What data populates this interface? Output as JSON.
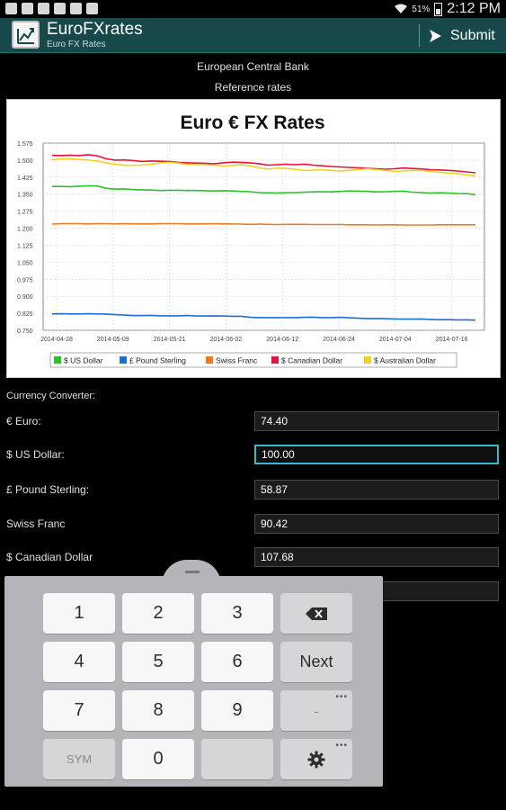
{
  "status_bar": {
    "battery": "51%",
    "time": "2:12 PM"
  },
  "action_bar": {
    "title": "EuroFXrates",
    "subtitle": "Euro FX Rates",
    "submit_label": "Submit"
  },
  "header": {
    "line1": "European Central Bank",
    "line2": "Reference rates"
  },
  "chart_data": {
    "type": "line",
    "title": "Euro € FX Rates",
    "x_ticks": [
      "2014-04-28",
      "2014-05-09",
      "2014-05-21",
      "2014-06-02",
      "2014-06-12",
      "2014-06-24",
      "2014-07-04",
      "2014-07-16"
    ],
    "y_ticks": [
      "1.575",
      "1.500",
      "1.425",
      "1.350",
      "1.275",
      "1.200",
      "1.125",
      "1.050",
      "0.975",
      "0.900",
      "0.825",
      "0.750"
    ],
    "ylim": [
      0.75,
      1.575
    ],
    "grid": true,
    "legend_placement": "bottom",
    "series": [
      {
        "name": "$ US Dollar",
        "color": "#2cc02c",
        "values": [
          1.384,
          1.384,
          1.383,
          1.385,
          1.387,
          1.386,
          1.376,
          1.372,
          1.373,
          1.37,
          1.369,
          1.368,
          1.366,
          1.367,
          1.367,
          1.366,
          1.366,
          1.365,
          1.364,
          1.365,
          1.364,
          1.362,
          1.361,
          1.357,
          1.356,
          1.355,
          1.357,
          1.357,
          1.359,
          1.36,
          1.361,
          1.36,
          1.362,
          1.364,
          1.363,
          1.362,
          1.36,
          1.361,
          1.362,
          1.363,
          1.359,
          1.357,
          1.355,
          1.356,
          1.355,
          1.353,
          1.352,
          1.348
        ]
      },
      {
        "name": "£ Pound Sterling",
        "color": "#1f6fd0",
        "values": [
          0.822,
          0.823,
          0.822,
          0.822,
          0.823,
          0.822,
          0.821,
          0.819,
          0.817,
          0.815,
          0.815,
          0.816,
          0.814,
          0.814,
          0.814,
          0.815,
          0.813,
          0.813,
          0.814,
          0.813,
          0.812,
          0.812,
          0.807,
          0.806,
          0.806,
          0.806,
          0.806,
          0.806,
          0.807,
          0.808,
          0.806,
          0.806,
          0.807,
          0.805,
          0.803,
          0.802,
          0.802,
          0.801,
          0.8,
          0.799,
          0.799,
          0.8,
          0.798,
          0.797,
          0.797,
          0.796,
          0.796,
          0.795
        ]
      },
      {
        "name": "Swiss Franc",
        "color": "#f07a1e",
        "values": [
          1.218,
          1.22,
          1.22,
          1.22,
          1.219,
          1.22,
          1.22,
          1.219,
          1.22,
          1.219,
          1.219,
          1.219,
          1.22,
          1.22,
          1.22,
          1.219,
          1.219,
          1.219,
          1.22,
          1.219,
          1.219,
          1.218,
          1.217,
          1.218,
          1.217,
          1.216,
          1.217,
          1.217,
          1.217,
          1.216,
          1.216,
          1.216,
          1.216,
          1.215,
          1.215,
          1.215,
          1.214,
          1.215,
          1.215,
          1.214,
          1.214,
          1.214,
          1.214,
          1.215,
          1.215,
          1.215,
          1.215,
          1.215
        ]
      },
      {
        "name": "$ Canadian Dollar",
        "color": "#e8123e",
        "values": [
          1.521,
          1.52,
          1.522,
          1.52,
          1.524,
          1.519,
          1.506,
          1.5,
          1.501,
          1.498,
          1.494,
          1.496,
          1.495,
          1.494,
          1.49,
          1.488,
          1.487,
          1.486,
          1.484,
          1.488,
          1.491,
          1.49,
          1.488,
          1.484,
          1.478,
          1.48,
          1.482,
          1.48,
          1.482,
          1.478,
          1.475,
          1.472,
          1.47,
          1.468,
          1.466,
          1.464,
          1.462,
          1.46,
          1.462,
          1.465,
          1.463,
          1.461,
          1.458,
          1.457,
          1.455,
          1.452,
          1.448,
          1.444
        ]
      },
      {
        "name": "$ Australian Dollar",
        "color": "#f2d21e",
        "values": [
          1.502,
          1.505,
          1.506,
          1.503,
          1.501,
          1.496,
          1.488,
          1.482,
          1.477,
          1.477,
          1.478,
          1.482,
          1.488,
          1.49,
          1.487,
          1.481,
          1.48,
          1.478,
          1.479,
          1.474,
          1.476,
          1.48,
          1.475,
          1.466,
          1.46,
          1.465,
          1.463,
          1.459,
          1.454,
          1.456,
          1.458,
          1.455,
          1.452,
          1.455,
          1.458,
          1.462,
          1.458,
          1.455,
          1.45,
          1.452,
          1.455,
          1.454,
          1.45,
          1.447,
          1.443,
          1.44,
          1.434,
          1.43
        ]
      }
    ]
  },
  "converter": {
    "title": "Currency Converter:",
    "rows": [
      {
        "label": "€ Euro:",
        "value": "74.40"
      },
      {
        "label": "$ US Dollar:",
        "value": "100.00"
      },
      {
        "label": "£ Pound Sterling:",
        "value": "58.87"
      },
      {
        "label": "Swiss Franc",
        "value": "90.42"
      },
      {
        "label": "$ Canadian Dollar",
        "value": "107.68"
      }
    ]
  },
  "keypad": {
    "keys": [
      "1",
      "2",
      "3",
      "4",
      "5",
      "6",
      "Next",
      "7",
      "8",
      "9",
      "-",
      "SYM",
      "0"
    ]
  }
}
